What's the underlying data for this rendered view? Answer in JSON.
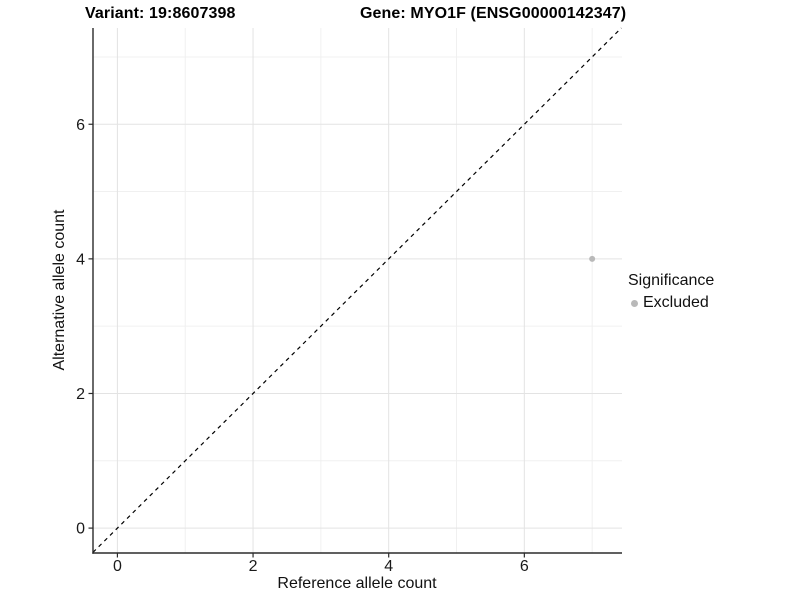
{
  "titles": {
    "variant": "Variant: 19:8607398",
    "gene": "Gene: MYO1F (ENSG00000142347)"
  },
  "chart_data": {
    "type": "scatter",
    "xlabel": "Reference allele count",
    "ylabel": "Alternative allele count",
    "xlim": [
      -0.36,
      7.44
    ],
    "ylim": [
      -0.37,
      7.43
    ],
    "xticks": [
      0,
      2,
      4,
      6
    ],
    "yticks": [
      0,
      2,
      4,
      6
    ],
    "xticks_minor": [
      1,
      3,
      5,
      7
    ],
    "yticks_minor": [
      1,
      3,
      5,
      7
    ],
    "grid": true,
    "points": [
      {
        "x": 7,
        "y": 4,
        "significance": "Excluded",
        "color": "#b9b9b9"
      }
    ],
    "reference_line": {
      "slope": 1,
      "intercept": 0,
      "style": "dashed",
      "color": "#000000"
    },
    "legend": {
      "title": "Significance",
      "position": "right",
      "entries": [
        {
          "label": "Excluded",
          "color": "#b9b9b9",
          "marker": "circle"
        }
      ]
    }
  },
  "colors": {
    "point_excluded": "#b9b9b9",
    "grid_major": "#e3e3e3",
    "grid_minor": "#f0f0f0",
    "axis_line": "#2b2b2b",
    "text": "#1a1a1a"
  }
}
